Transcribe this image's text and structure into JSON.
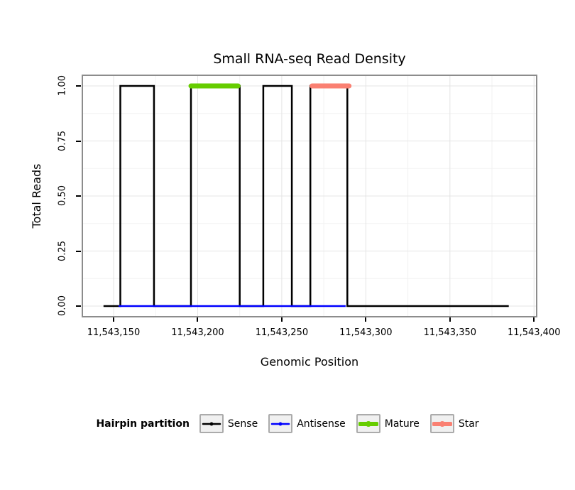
{
  "chart_data": {
    "type": "line",
    "title": "Small RNA-seq Read Density",
    "xlabel": "Genomic Position",
    "ylabel": "Total Reads",
    "xlim": [
      11543131,
      11543402
    ],
    "ylim": [
      0,
      1
    ],
    "x_ticks": [
      11543150,
      11543200,
      11543250,
      11543300,
      11543350,
      11543400
    ],
    "x_tick_labels": [
      "11,543,150",
      "11,543,200",
      "11,543,250",
      "11,543,300",
      "11,543,350",
      "11,543,400"
    ],
    "x_minor_ticks": [
      11543175,
      11543225,
      11543275,
      11543325,
      11543375
    ],
    "y_ticks": [
      0,
      0.25,
      0.5,
      0.75,
      1
    ],
    "y_tick_labels": [
      "0.00",
      "0.25",
      "0.50",
      "0.75",
      "1.00"
    ],
    "y_minor_ticks": [
      0.125,
      0.375,
      0.625,
      0.875
    ],
    "grid": {
      "major_color": "#E4E4E4",
      "minor_color": "#F2F2F2"
    },
    "panel": {
      "border_color": "#8C8C8C",
      "background": "#FFFFFF"
    },
    "series": [
      {
        "name": "Sense",
        "color": "#000000",
        "width": 2.5,
        "linecap": "butt",
        "points": [
          [
            11543144,
            0
          ],
          [
            11543154,
            0
          ],
          [
            11543154,
            1
          ],
          [
            11543174,
            1
          ],
          [
            11543174,
            0
          ],
          [
            11543196,
            0
          ],
          [
            11543196,
            1
          ],
          [
            11543225,
            1
          ],
          [
            11543225,
            0
          ],
          [
            11543239,
            0
          ],
          [
            11543239,
            1
          ],
          [
            11543256,
            1
          ],
          [
            11543256,
            0
          ],
          [
            11543267,
            0
          ],
          [
            11543267,
            1
          ],
          [
            11543289,
            1
          ],
          [
            11543289,
            0
          ],
          [
            11543385,
            0
          ]
        ]
      },
      {
        "name": "Antisense",
        "color": "#0000FF",
        "width": 2.5,
        "linecap": "butt",
        "points": [
          [
            11543153,
            0
          ],
          [
            11543288,
            0
          ]
        ]
      },
      {
        "name": "Mature",
        "color": "#66CD00",
        "width": 7,
        "linecap": "round",
        "points": [
          [
            11543196,
            1
          ],
          [
            11543224,
            1
          ]
        ]
      },
      {
        "name": "Star",
        "color": "#FA8072",
        "width": 7,
        "linecap": "round",
        "points": [
          [
            11543268,
            1
          ],
          [
            11543290,
            1
          ]
        ]
      }
    ],
    "legend": {
      "title": "Hairpin partition",
      "position": "bottom",
      "entries": [
        {
          "label": "Sense",
          "color": "#000000",
          "line_width": 2.5,
          "point_size": 5
        },
        {
          "label": "Antisense",
          "color": "#0000FF",
          "line_width": 2.5,
          "point_size": 5
        },
        {
          "label": "Mature",
          "color": "#66CD00",
          "line_width": 6,
          "point_size": 8
        },
        {
          "label": "Star",
          "color": "#FA8072",
          "line_width": 6,
          "point_size": 8
        }
      ]
    }
  }
}
